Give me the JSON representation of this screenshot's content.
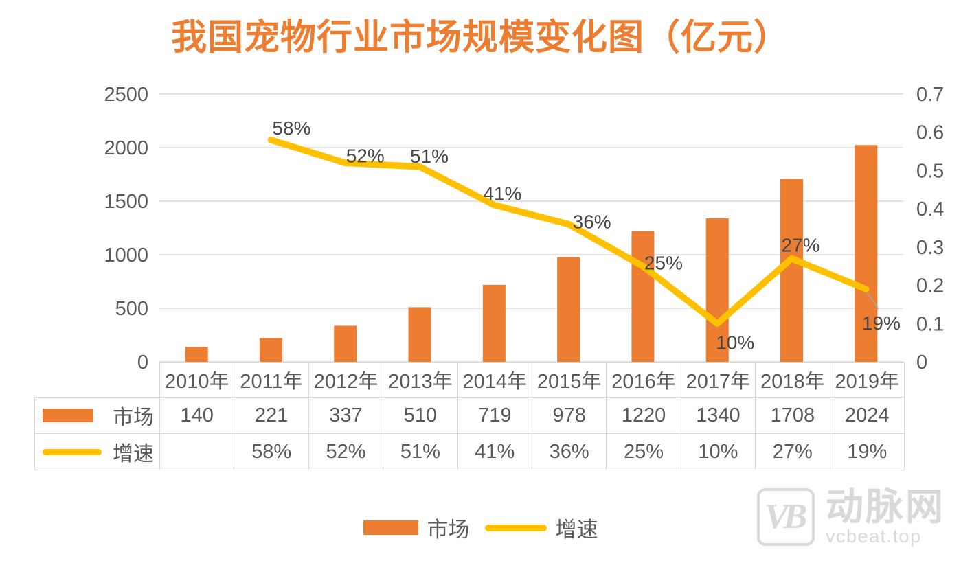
{
  "chart_data": {
    "type": "bar+line combo",
    "title": "我国宠物行业市场规模变化图（亿元）",
    "categories": [
      "2010年",
      "2011年",
      "2012年",
      "2013年",
      "2014年",
      "2015年",
      "2016年",
      "2017年",
      "2018年",
      "2019年"
    ],
    "series": [
      {
        "name": "市场",
        "type": "bar",
        "axis": "left",
        "color": "#ED7D31",
        "values": [
          140,
          221,
          337,
          510,
          719,
          978,
          1220,
          1340,
          1708,
          2024
        ]
      },
      {
        "name": "增速",
        "type": "line",
        "axis": "right",
        "color": "#FFC000",
        "values": [
          null,
          0.58,
          0.52,
          0.51,
          0.41,
          0.36,
          0.25,
          0.1,
          0.27,
          0.19
        ],
        "point_labels": [
          "",
          "58%",
          "52%",
          "51%",
          "41%",
          "36%",
          "25%",
          "10%",
          "27%",
          "19%"
        ]
      }
    ],
    "left_axis": {
      "min": 0,
      "max": 2500,
      "step": 500,
      "tick_labels": [
        "2500",
        "2000",
        "1500",
        "1000",
        "500",
        "0"
      ]
    },
    "right_axis": {
      "min": 0,
      "max": 0.7,
      "step": 0.1,
      "tick_labels": [
        "0.7",
        "0.6",
        "0.5",
        "0.4",
        "0.3",
        "0.2",
        "0.1",
        "0"
      ]
    },
    "grid": true,
    "legend_position": "bottom"
  },
  "data_table": {
    "header": [
      "2010年",
      "2011年",
      "2012年",
      "2013年",
      "2014年",
      "2015年",
      "2016年",
      "2017年",
      "2018年",
      "2019年"
    ],
    "rows": [
      {
        "label": "市场",
        "swatch": "bar",
        "values": [
          "140",
          "221",
          "337",
          "510",
          "719",
          "978",
          "1220",
          "1340",
          "1708",
          "2024"
        ]
      },
      {
        "label": "增速",
        "swatch": "line",
        "values": [
          "",
          "58%",
          "52%",
          "51%",
          "41%",
          "36%",
          "25%",
          "10%",
          "27%",
          "19%"
        ]
      }
    ]
  },
  "legend": {
    "market_label": "市场",
    "growth_label": "增速"
  },
  "watermark": {
    "logo_text": "VB",
    "brand": "动脉网",
    "site": "vcbeat.top"
  },
  "colors": {
    "bar": "#ED7D31",
    "line": "#FFC000",
    "title": "#ED7D31",
    "axis_text": "#595959",
    "point_label_text": "#474747",
    "grid": "#D9D9D9",
    "table_border": "#D8D8D8",
    "leader_line": "#A6A6A6",
    "watermark": "#D9D9D9"
  }
}
